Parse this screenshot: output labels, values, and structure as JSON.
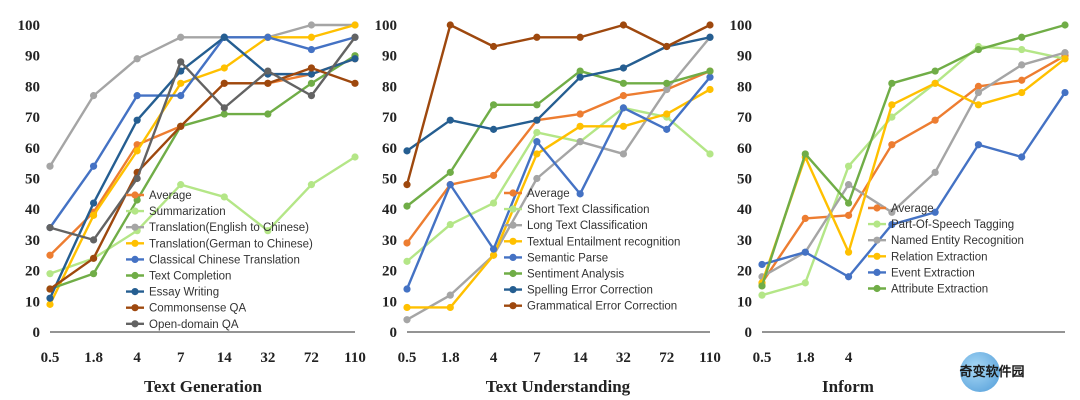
{
  "chart_data": [
    {
      "type": "line",
      "title": "Text Generation",
      "categories": [
        "0.5",
        "1.8",
        "4",
        "7",
        "14",
        "32",
        "72",
        "110"
      ],
      "ylim": [
        0,
        100
      ],
      "yticks": [
        "0",
        "10",
        "20",
        "30",
        "40",
        "50",
        "60",
        "70",
        "80",
        "90",
        "100"
      ],
      "grid": false,
      "legend_position": "bottom-center",
      "series": [
        {
          "name": "Average",
          "color": "#ed7d31",
          "values": [
            25,
            39,
            61,
            67,
            81,
            81,
            84,
            89
          ]
        },
        {
          "name": "Summarization",
          "color": "#b4e687",
          "values": [
            19,
            24,
            33,
            48,
            44,
            33,
            48,
            57
          ]
        },
        {
          "name": "Translation(English to Chinese)",
          "color": "#a5a5a5",
          "values": [
            54,
            77,
            89,
            96,
            96,
            96,
            100,
            100
          ]
        },
        {
          "name": "Translation(German to Chinese)",
          "color": "#ffc000",
          "values": [
            9,
            38,
            59,
            81,
            86,
            96,
            96,
            100
          ]
        },
        {
          "name": "Classical Chinese Translation",
          "color": "#4472c4",
          "values": [
            34,
            54,
            77,
            77,
            96,
            96,
            92,
            96
          ]
        },
        {
          "name": "Text Completion",
          "color": "#70ad47",
          "values": [
            14,
            19,
            43,
            67,
            71,
            71,
            81,
            90
          ]
        },
        {
          "name": "Essay Writing",
          "color": "#255e91",
          "values": [
            11,
            42,
            69,
            85,
            96,
            84,
            84,
            89
          ]
        },
        {
          "name": "Commonsense QA",
          "color": "#9e480e",
          "values": [
            14,
            24,
            52,
            67,
            81,
            81,
            86,
            81
          ]
        },
        {
          "name": "Open-domain QA",
          "color": "#636363",
          "values": [
            34,
            30,
            50,
            88,
            73,
            85,
            77,
            96
          ]
        }
      ]
    },
    {
      "type": "line",
      "title": "Text Understanding",
      "categories": [
        "0.5",
        "1.8",
        "4",
        "7",
        "14",
        "32",
        "72",
        "110"
      ],
      "ylim": [
        0,
        100
      ],
      "yticks": [
        "0",
        "10",
        "20",
        "30",
        "40",
        "50",
        "60",
        "70",
        "80",
        "90",
        "100"
      ],
      "grid": false,
      "legend_position": "bottom-center",
      "series": [
        {
          "name": "Average",
          "color": "#ed7d31",
          "values": [
            29,
            48,
            51,
            69,
            71,
            77,
            79,
            85
          ]
        },
        {
          "name": "Short Text Classification",
          "color": "#b4e687",
          "values": [
            23,
            35,
            42,
            65,
            62,
            73,
            70,
            58
          ]
        },
        {
          "name": "Long Text Classification",
          "color": "#a5a5a5",
          "values": [
            4,
            12,
            25,
            50,
            62,
            58,
            79,
            96
          ]
        },
        {
          "name": "Textual Entailment recognition",
          "color": "#ffc000",
          "values": [
            8,
            8,
            25,
            58,
            67,
            67,
            71,
            79
          ]
        },
        {
          "name": "Semantic Parse",
          "color": "#4472c4",
          "values": [
            14,
            48,
            27,
            62,
            45,
            73,
            66,
            83
          ]
        },
        {
          "name": "Sentiment Analysis",
          "color": "#70ad47",
          "values": [
            41,
            52,
            74,
            74,
            85,
            81,
            81,
            85
          ]
        },
        {
          "name": "Spelling Error Correction",
          "color": "#255e91",
          "values": [
            59,
            69,
            66,
            69,
            83,
            86,
            93,
            96
          ]
        },
        {
          "name": "Grammatical Error Correction",
          "color": "#9e480e",
          "values": [
            48,
            100,
            93,
            96,
            96,
            100,
            93,
            100
          ]
        }
      ]
    },
    {
      "type": "line",
      "title": "Inform",
      "categories": [
        "0.5",
        "1.8",
        "4",
        "",
        "",
        "",
        "",
        ""
      ],
      "ylim": [
        0,
        100
      ],
      "yticks": [
        "0",
        "10",
        "20",
        "30",
        "40",
        "50",
        "60",
        "70",
        "80",
        "90",
        "100"
      ],
      "grid": false,
      "legend_position": "bottom-center",
      "series": [
        {
          "name": "Average",
          "color": "#ed7d31",
          "values": [
            16,
            37,
            38,
            61,
            69,
            80,
            82,
            90
          ]
        },
        {
          "name": "Part-Of-Speech Tagging",
          "color": "#b4e687",
          "values": [
            12,
            16,
            54,
            70,
            81,
            93,
            92,
            89
          ]
        },
        {
          "name": "Named Entity Recognition",
          "color": "#a5a5a5",
          "values": [
            18,
            26,
            48,
            39,
            52,
            78,
            87,
            91
          ]
        },
        {
          "name": "Relation Extraction",
          "color": "#ffc000",
          "values": [
            16,
            57,
            26,
            74,
            81,
            74,
            78,
            89
          ]
        },
        {
          "name": "Event Extraction",
          "color": "#4472c4",
          "values": [
            22,
            26,
            18,
            35,
            39,
            61,
            57,
            78
          ]
        },
        {
          "name": "Attribute Extraction",
          "color": "#70ad47",
          "values": [
            15,
            58,
            42,
            81,
            85,
            92,
            96,
            100
          ]
        }
      ]
    }
  ],
  "watermark": {
    "text": "奇变软件园"
  }
}
